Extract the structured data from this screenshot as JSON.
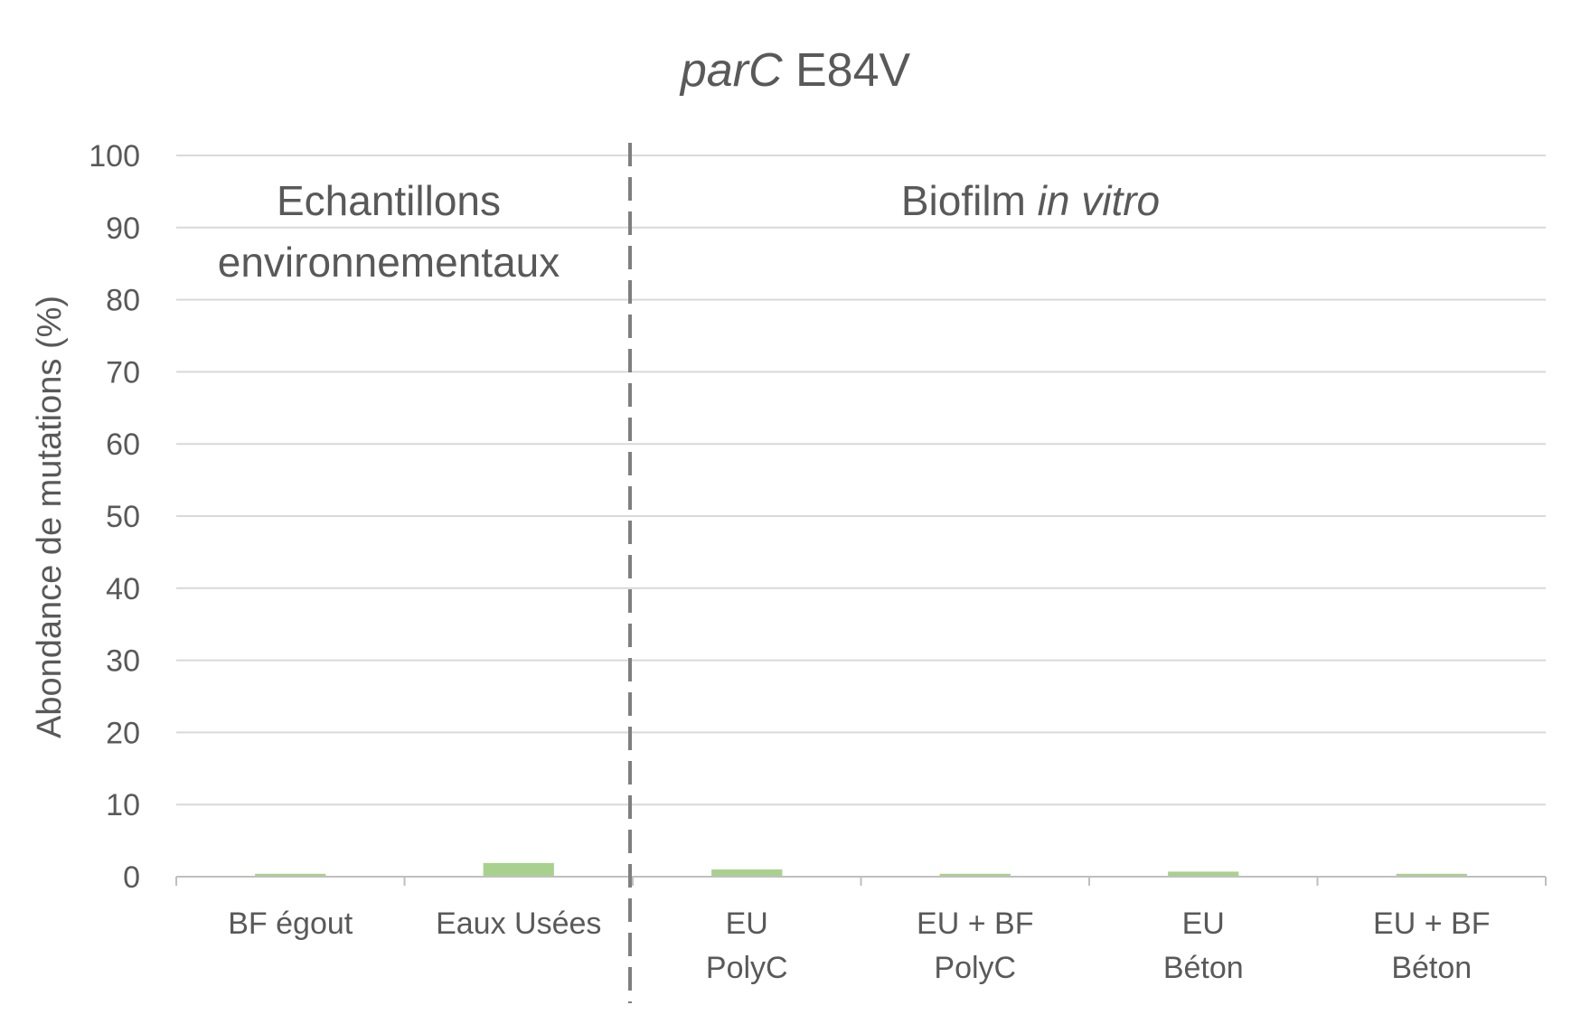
{
  "chart_data": {
    "type": "bar",
    "title_italic": "parC",
    "title_rest": " E84V",
    "ylabel": "Abondance de mutations (%)",
    "xlabel": "",
    "ylim": [
      0,
      100
    ],
    "yticks": [
      0,
      10,
      20,
      30,
      40,
      50,
      60,
      70,
      80,
      90,
      100
    ],
    "grid": true,
    "bar_color": "#a9d18e",
    "categories": [
      [
        "BF égout"
      ],
      [
        "Eaux Usées"
      ],
      [
        "EU",
        "PolyC"
      ],
      [
        "EU + BF",
        "PolyC"
      ],
      [
        "EU",
        "Béton"
      ],
      [
        "EU + BF",
        "Béton"
      ]
    ],
    "values": [
      0.4,
      1.9,
      1.0,
      0.4,
      0.7,
      0.4
    ],
    "groups": [
      {
        "lines": [
          [
            {
              "text": "Echantillons",
              "italic": false
            }
          ],
          [
            {
              "text": "environnementaux",
              "italic": false
            }
          ]
        ]
      },
      {
        "lines": [
          [
            {
              "text": "Biofilm ",
              "italic": false
            },
            {
              "text": "in vitro",
              "italic": true
            }
          ]
        ]
      }
    ]
  }
}
